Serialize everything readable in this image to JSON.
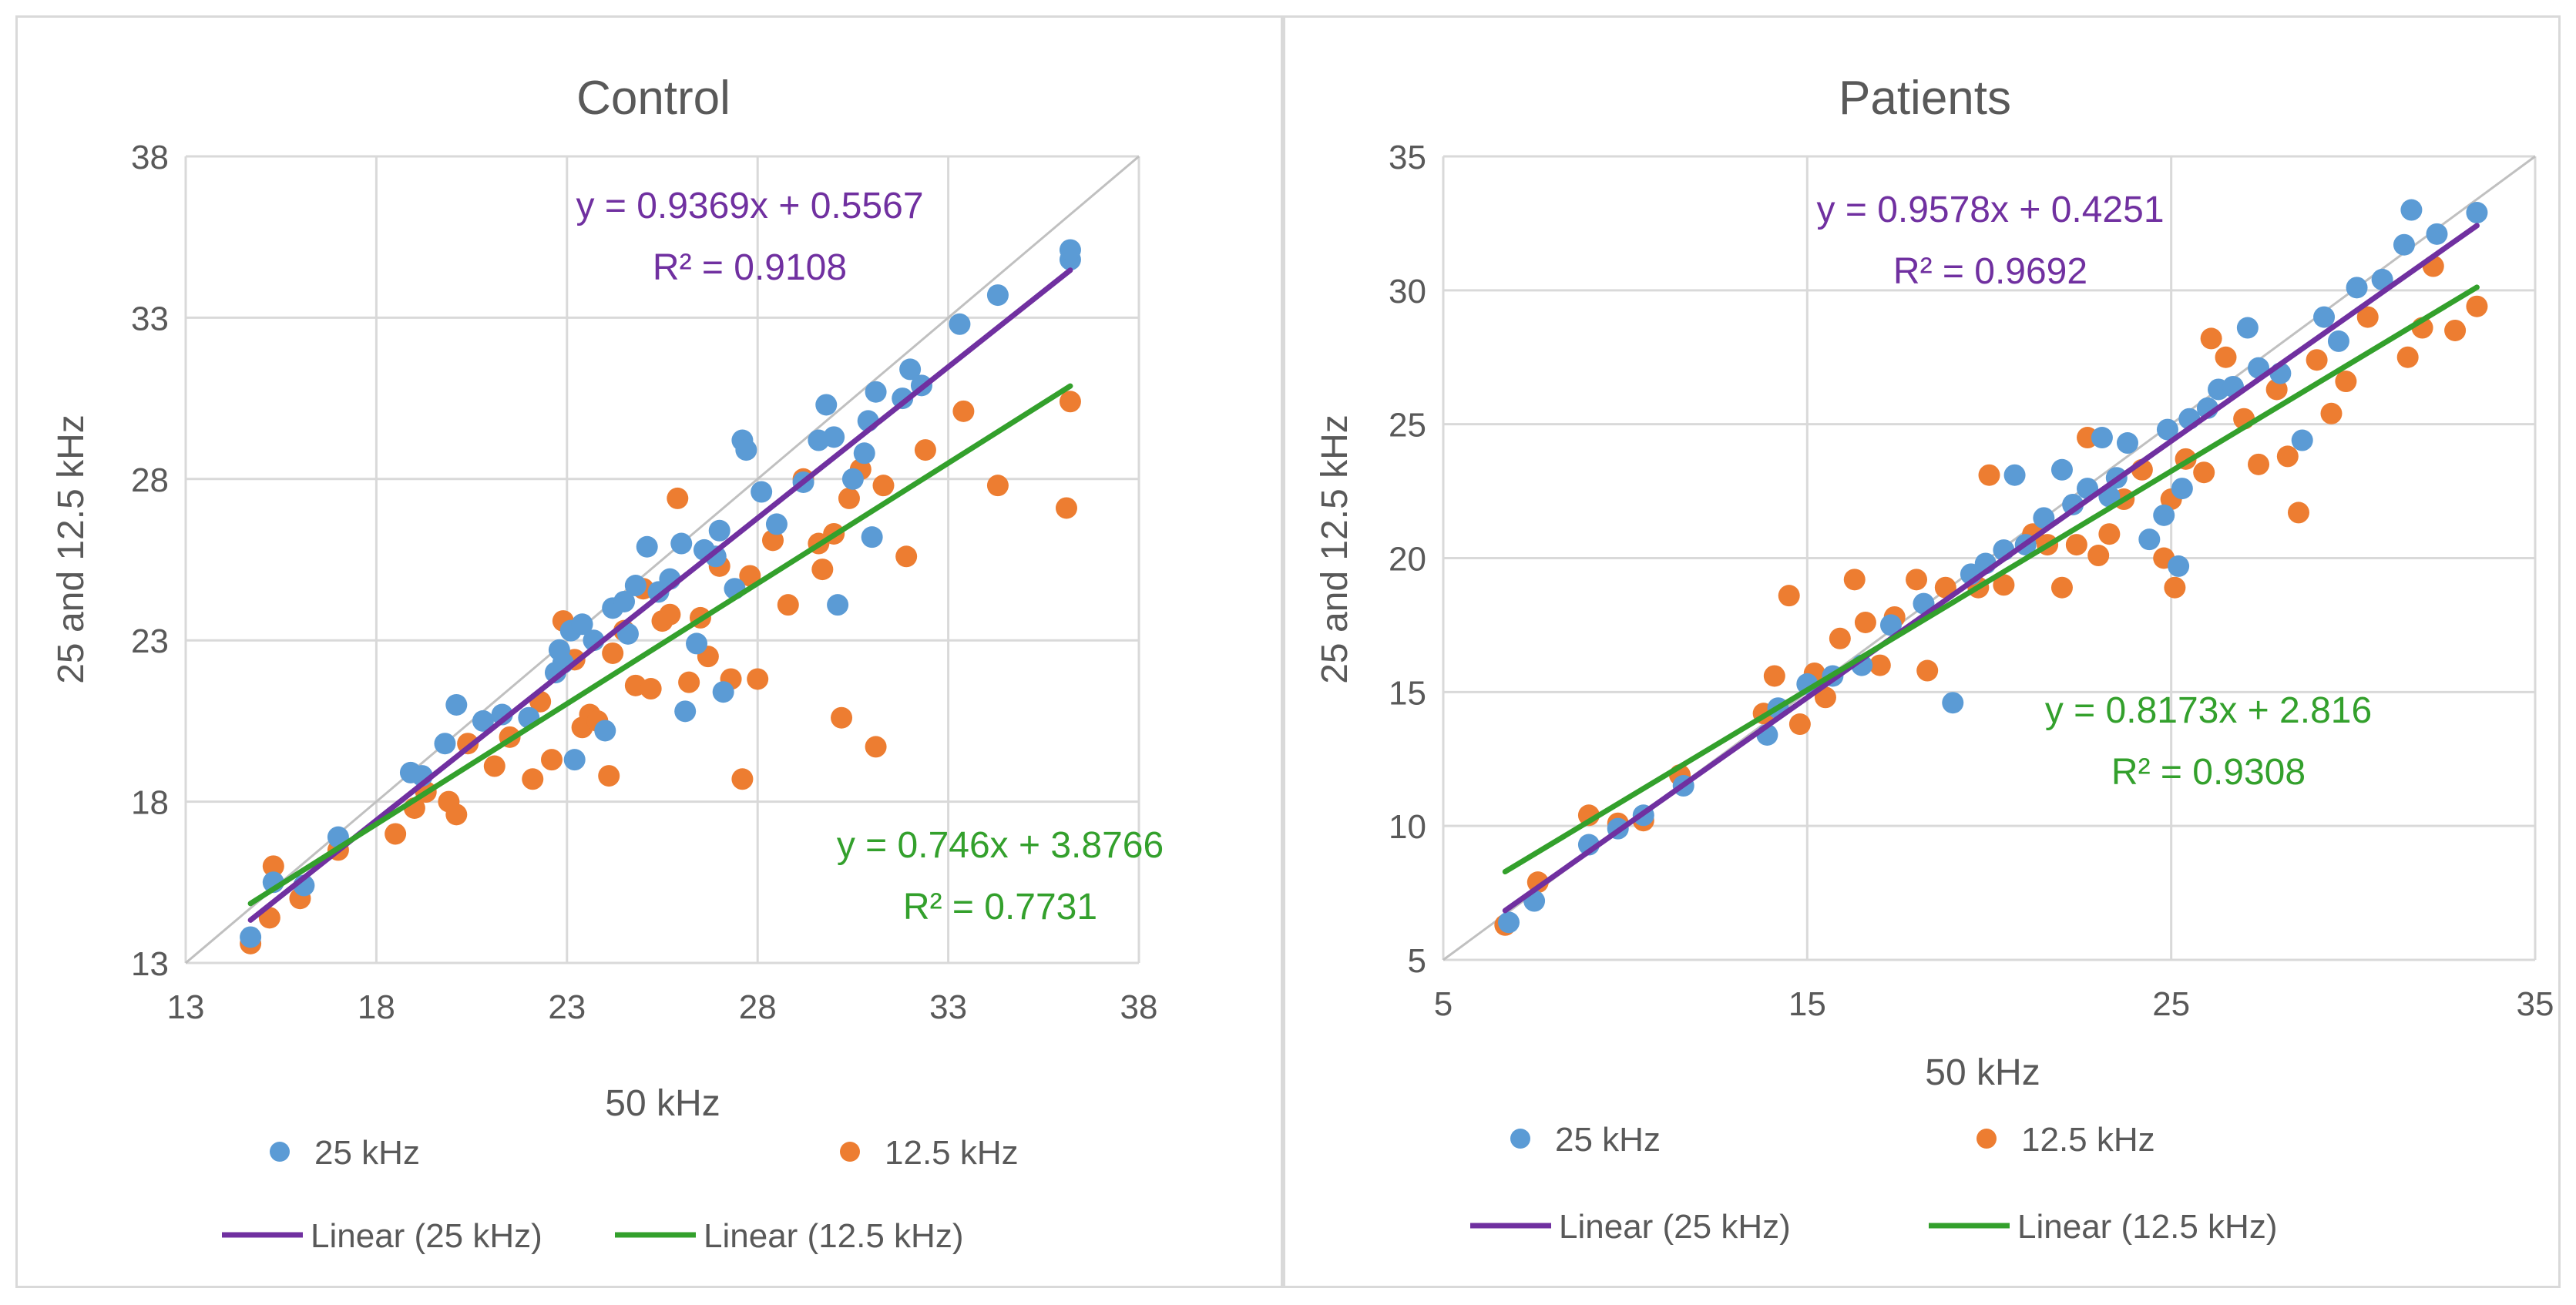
{
  "colors": {
    "series_25": "#5b9bd5",
    "series_12_5": "#ed7d31",
    "trend_25": "#7030a0",
    "trend_12_5": "#33a02c",
    "identity": "#c0c0c0",
    "text": "#595959"
  },
  "chart_data": [
    {
      "type": "scatter",
      "title": "Control",
      "xlabel": "50 kHz",
      "ylabel": "25 and 12.5 kHz",
      "xlim": [
        13,
        38
      ],
      "ylim": [
        13,
        38
      ],
      "xticks": [
        "13",
        "18",
        "23",
        "28",
        "33",
        "38"
      ],
      "yticks": [
        "13",
        "18",
        "23",
        "28",
        "33",
        "38"
      ],
      "grid": true,
      "legend": [
        "25 kHz",
        "12.5 kHz",
        "Linear (25 kHz)",
        "Linear (12.5 kHz)"
      ],
      "legend_position": "bottom",
      "series": [
        {
          "name": "25 kHz",
          "points": [
            [
              14.7,
              13.8
            ],
            [
              15.3,
              15.5
            ],
            [
              16.1,
              15.4
            ],
            [
              17.0,
              16.9
            ],
            [
              18.9,
              18.9
            ],
            [
              19.2,
              18.8
            ],
            [
              19.8,
              19.8
            ],
            [
              20.1,
              21.0
            ],
            [
              20.8,
              20.5
            ],
            [
              21.3,
              20.7
            ],
            [
              22.0,
              20.6
            ],
            [
              22.7,
              22.0
            ],
            [
              22.8,
              22.7
            ],
            [
              23.1,
              23.3
            ],
            [
              23.2,
              19.3
            ],
            [
              23.4,
              23.5
            ],
            [
              23.7,
              23.0
            ],
            [
              24.0,
              20.2
            ],
            [
              24.2,
              24.0
            ],
            [
              24.6,
              23.2
            ],
            [
              24.8,
              24.7
            ],
            [
              25.1,
              25.9
            ],
            [
              25.4,
              24.5
            ],
            [
              25.7,
              24.9
            ],
            [
              26.0,
              26.0
            ],
            [
              26.1,
              20.8
            ],
            [
              26.4,
              22.9
            ],
            [
              26.6,
              25.8
            ],
            [
              27.0,
              26.4
            ],
            [
              27.1,
              21.4
            ],
            [
              27.4,
              24.6
            ],
            [
              27.6,
              29.2
            ],
            [
              27.7,
              28.9
            ],
            [
              28.1,
              27.6
            ],
            [
              28.5,
              26.6
            ],
            [
              29.2,
              27.9
            ],
            [
              29.6,
              29.2
            ],
            [
              29.8,
              30.3
            ],
            [
              30.0,
              29.3
            ],
            [
              30.1,
              24.1
            ],
            [
              30.5,
              28.0
            ],
            [
              30.8,
              28.8
            ],
            [
              31.0,
              26.2
            ],
            [
              31.1,
              30.7
            ],
            [
              31.8,
              30.5
            ],
            [
              32.0,
              31.4
            ],
            [
              32.3,
              30.9
            ],
            [
              33.3,
              32.8
            ],
            [
              34.3,
              33.7
            ],
            [
              36.2,
              34.8
            ],
            [
              36.2,
              35.1
            ],
            [
              30.9,
              29.8
            ],
            [
              24.5,
              24.2
            ],
            [
              22.9,
              22.3
            ],
            [
              26.9,
              25.6
            ]
          ]
        },
        {
          "name": "12.5 kHz",
          "points": [
            [
              14.7,
              13.6
            ],
            [
              15.2,
              14.4
            ],
            [
              15.3,
              16.0
            ],
            [
              16.0,
              15.0
            ],
            [
              17.0,
              16.5
            ],
            [
              18.5,
              17.0
            ],
            [
              19.0,
              17.8
            ],
            [
              19.3,
              18.3
            ],
            [
              19.9,
              18.0
            ],
            [
              20.1,
              17.6
            ],
            [
              20.4,
              19.8
            ],
            [
              21.1,
              19.1
            ],
            [
              21.5,
              20.0
            ],
            [
              22.1,
              18.7
            ],
            [
              22.3,
              21.1
            ],
            [
              22.6,
              19.3
            ],
            [
              22.9,
              23.6
            ],
            [
              23.2,
              22.4
            ],
            [
              23.4,
              20.3
            ],
            [
              23.6,
              20.7
            ],
            [
              23.8,
              20.5
            ],
            [
              24.1,
              18.8
            ],
            [
              24.2,
              22.6
            ],
            [
              24.5,
              23.3
            ],
            [
              24.8,
              21.6
            ],
            [
              25.0,
              24.6
            ],
            [
              25.2,
              21.5
            ],
            [
              25.5,
              23.6
            ],
            [
              25.9,
              27.4
            ],
            [
              26.2,
              21.7
            ],
            [
              26.5,
              23.7
            ],
            [
              26.7,
              22.5
            ],
            [
              27.0,
              25.3
            ],
            [
              27.3,
              21.8
            ],
            [
              27.6,
              18.7
            ],
            [
              27.8,
              25.0
            ],
            [
              28.0,
              21.8
            ],
            [
              28.4,
              26.1
            ],
            [
              28.8,
              24.1
            ],
            [
              29.2,
              28.0
            ],
            [
              29.7,
              25.2
            ],
            [
              30.0,
              26.3
            ],
            [
              30.2,
              20.6
            ],
            [
              30.4,
              27.4
            ],
            [
              30.7,
              28.3
            ],
            [
              31.1,
              19.7
            ],
            [
              31.3,
              27.8
            ],
            [
              31.9,
              25.6
            ],
            [
              32.4,
              28.9
            ],
            [
              33.4,
              30.1
            ],
            [
              34.3,
              27.8
            ],
            [
              36.1,
              27.1
            ],
            [
              36.2,
              30.4
            ],
            [
              29.6,
              26.0
            ],
            [
              25.7,
              23.8
            ]
          ]
        }
      ],
      "trendlines": [
        {
          "name": "Linear (25 kHz)",
          "slope": 0.9369,
          "intercept": 0.5567,
          "x_range": [
            14.7,
            36.2
          ],
          "equation": "y = 0.9369x + 0.5567",
          "r2": "R² = 0.9108"
        },
        {
          "name": "Linear (12.5 kHz)",
          "slope": 0.746,
          "intercept": 3.8766,
          "x_range": [
            14.7,
            36.2
          ],
          "equation": "y = 0.746x + 3.8766",
          "r2": "R² = 0.7731"
        }
      ]
    },
    {
      "type": "scatter",
      "title": "Patients",
      "xlabel": "50 kHz",
      "ylabel": "25 and 12.5 kHz",
      "xlim": [
        5,
        35
      ],
      "ylim": [
        5,
        35
      ],
      "xticks": [
        "5",
        "15",
        "25",
        "35"
      ],
      "yticks": [
        "5",
        "10",
        "15",
        "20",
        "25",
        "30",
        "35"
      ],
      "grid": true,
      "legend": [
        "25 kHz",
        "12.5 kHz",
        "Linear (25 kHz)",
        "Linear (12.5 kHz)"
      ],
      "legend_position": "bottom",
      "series": [
        {
          "name": "25 kHz",
          "points": [
            [
              6.8,
              6.4
            ],
            [
              7.5,
              7.2
            ],
            [
              9.0,
              9.3
            ],
            [
              9.8,
              9.9
            ],
            [
              10.5,
              10.4
            ],
            [
              11.6,
              11.5
            ],
            [
              13.9,
              13.4
            ],
            [
              14.2,
              14.4
            ],
            [
              15.0,
              15.3
            ],
            [
              15.7,
              15.6
            ],
            [
              16.5,
              16.0
            ],
            [
              17.3,
              17.5
            ],
            [
              18.2,
              18.3
            ],
            [
              19.0,
              14.6
            ],
            [
              19.5,
              19.4
            ],
            [
              19.9,
              19.8
            ],
            [
              20.4,
              20.3
            ],
            [
              20.7,
              23.1
            ],
            [
              21.0,
              20.5
            ],
            [
              21.5,
              21.5
            ],
            [
              22.0,
              23.3
            ],
            [
              22.3,
              22.0
            ],
            [
              22.7,
              22.6
            ],
            [
              23.1,
              24.5
            ],
            [
              23.5,
              23.0
            ],
            [
              23.8,
              24.3
            ],
            [
              24.4,
              20.7
            ],
            [
              24.9,
              24.8
            ],
            [
              25.2,
              19.7
            ],
            [
              25.5,
              25.2
            ],
            [
              26.0,
              25.6
            ],
            [
              26.3,
              26.3
            ],
            [
              26.7,
              26.4
            ],
            [
              27.1,
              28.6
            ],
            [
              27.4,
              27.1
            ],
            [
              28.0,
              26.9
            ],
            [
              28.6,
              24.4
            ],
            [
              29.2,
              29.0
            ],
            [
              29.6,
              28.1
            ],
            [
              30.1,
              30.1
            ],
            [
              30.8,
              30.4
            ],
            [
              31.4,
              31.7
            ],
            [
              31.6,
              33.0
            ],
            [
              32.3,
              32.1
            ],
            [
              33.4,
              32.9
            ],
            [
              24.8,
              21.6
            ],
            [
              25.3,
              22.6
            ],
            [
              23.3,
              22.3
            ]
          ]
        },
        {
          "name": "12.5 kHz",
          "points": [
            [
              6.7,
              6.3
            ],
            [
              7.6,
              7.9
            ],
            [
              9.0,
              10.4
            ],
            [
              9.8,
              10.1
            ],
            [
              10.5,
              10.2
            ],
            [
              11.5,
              11.9
            ],
            [
              13.8,
              14.2
            ],
            [
              14.1,
              15.6
            ],
            [
              14.5,
              18.6
            ],
            [
              14.8,
              13.8
            ],
            [
              15.2,
              15.7
            ],
            [
              15.5,
              14.8
            ],
            [
              15.9,
              17.0
            ],
            [
              16.3,
              19.2
            ],
            [
              16.6,
              17.6
            ],
            [
              17.0,
              16.0
            ],
            [
              17.4,
              17.8
            ],
            [
              18.0,
              19.2
            ],
            [
              18.3,
              15.8
            ],
            [
              18.8,
              18.9
            ],
            [
              19.7,
              18.9
            ],
            [
              20.0,
              23.1
            ],
            [
              20.4,
              19.0
            ],
            [
              21.2,
              20.9
            ],
            [
              21.6,
              20.5
            ],
            [
              22.0,
              18.9
            ],
            [
              22.4,
              20.5
            ],
            [
              22.7,
              24.5
            ],
            [
              23.0,
              20.1
            ],
            [
              23.3,
              20.9
            ],
            [
              23.7,
              22.2
            ],
            [
              24.2,
              23.3
            ],
            [
              24.8,
              20.0
            ],
            [
              25.1,
              18.9
            ],
            [
              25.4,
              23.7
            ],
            [
              25.9,
              23.2
            ],
            [
              26.1,
              28.2
            ],
            [
              26.5,
              27.5
            ],
            [
              27.0,
              25.2
            ],
            [
              27.4,
              23.5
            ],
            [
              27.9,
              26.3
            ],
            [
              28.5,
              21.7
            ],
            [
              29.0,
              27.4
            ],
            [
              29.4,
              25.4
            ],
            [
              29.8,
              26.6
            ],
            [
              30.4,
              29.0
            ],
            [
              31.5,
              27.5
            ],
            [
              31.9,
              28.6
            ],
            [
              32.2,
              30.9
            ],
            [
              32.8,
              28.5
            ],
            [
              33.4,
              29.4
            ],
            [
              28.2,
              23.8
            ],
            [
              25.0,
              22.2
            ]
          ]
        }
      ],
      "trendlines": [
        {
          "name": "Linear (25 kHz)",
          "slope": 0.9578,
          "intercept": 0.4251,
          "x_range": [
            6.7,
            33.4
          ],
          "equation": "y = 0.9578x + 0.4251",
          "r2": "R² = 0.9692"
        },
        {
          "name": "Linear (12.5 kHz)",
          "slope": 0.8173,
          "intercept": 2.816,
          "x_range": [
            6.7,
            33.4
          ],
          "equation": "y = 0.8173x + 2.816",
          "r2": "R² = 0.9308"
        }
      ]
    }
  ]
}
